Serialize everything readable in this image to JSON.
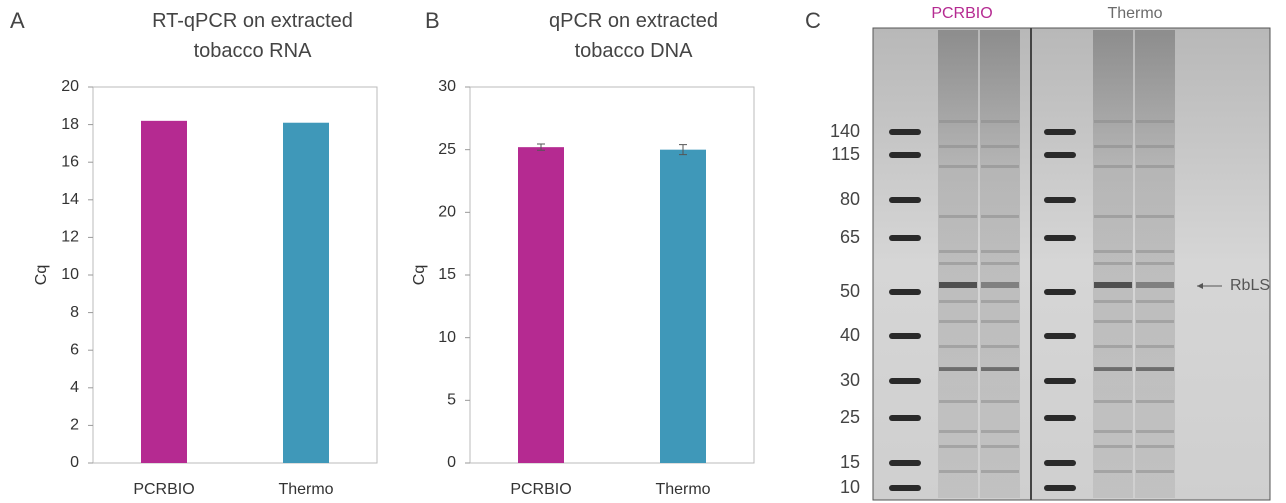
{
  "chart_data": [
    {
      "type": "bar",
      "panel": "A",
      "title": "RT-qPCR on extracted tobacco RNA",
      "ylabel": "Cq",
      "categories": [
        "PCRBIO",
        "Thermo"
      ],
      "values": [
        18.2,
        18.1
      ],
      "colors": [
        "#b52a91",
        "#3f98b9"
      ],
      "ylim": [
        0,
        20
      ],
      "yticks": [
        0,
        2,
        4,
        6,
        8,
        10,
        12,
        14,
        16,
        18,
        20
      ]
    },
    {
      "type": "bar",
      "panel": "B",
      "title": "qPCR on extracted tobacco DNA",
      "ylabel": "Cq",
      "categories": [
        "PCRBIO",
        "Thermo"
      ],
      "values": [
        25.2,
        25.0
      ],
      "errors": [
        0.25,
        0.4
      ],
      "colors": [
        "#b52a91",
        "#3f98b9"
      ],
      "ylim": [
        0,
        30
      ],
      "yticks": [
        0,
        5,
        10,
        15,
        20,
        25,
        30
      ]
    }
  ],
  "gel": {
    "panel": "C",
    "lanes": [
      {
        "name": "PCRBIO",
        "color": "#b52a91"
      },
      {
        "name": "Thermo",
        "color": "#6b6b6b"
      }
    ],
    "markers": [
      "140",
      "115",
      "80",
      "65",
      "50",
      "40",
      "30",
      "25",
      "15",
      "10"
    ],
    "annotation": "RbLS"
  }
}
